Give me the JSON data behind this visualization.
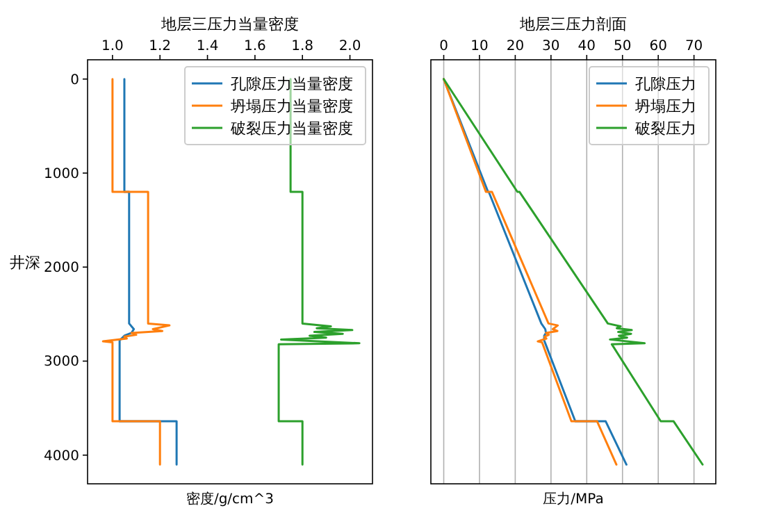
{
  "chart_data": [
    {
      "type": "line",
      "title": "地层三压力当量密度",
      "xlabel": "密度/g/cm^3",
      "ylabel": "井深",
      "xlim": [
        0.895,
        2.095
      ],
      "ylim": [
        4305,
        -205
      ],
      "xticks": [
        {
          "value": 1,
          "label": "1.0"
        },
        1.2,
        1.4,
        1.6,
        1.8,
        {
          "value": 2,
          "label": "2.0"
        }
      ],
      "yticks": [
        0,
        1000,
        2000,
        3000,
        4000
      ],
      "grid": false,
      "legend": "top right",
      "series": [
        {
          "name": "孔隙压力当量密度",
          "color": "#1f77b4",
          "x": [
            1.05,
            1.05,
            1.07,
            1.07,
            1.09,
            1.08,
            1.05,
            1.03,
            1.03,
            1.03,
            1.27,
            1.27
          ],
          "values": [
            0,
            1200,
            1200,
            2600,
            2660,
            2700,
            2730,
            2780,
            2820,
            3640,
            3640,
            4100
          ]
        },
        {
          "name": "坍塌压力当量密度",
          "color": "#ff7f0e",
          "x": [
            1.0,
            1.0,
            1.15,
            1.15,
            1.24,
            1.17,
            1.21,
            1.08,
            1.1,
            1.05,
            1.06,
            0.96,
            1.0,
            1.0,
            1.0,
            1.2,
            1.2
          ],
          "values": [
            0,
            1200,
            1200,
            2600,
            2620,
            2660,
            2680,
            2700,
            2720,
            2740,
            2760,
            2790,
            2800,
            2820,
            3640,
            3640,
            4100
          ]
        },
        {
          "name": "破裂压力当量密度",
          "color": "#2ca02c",
          "x": [
            1.75,
            1.75,
            1.8,
            1.8,
            1.92,
            1.86,
            2.01,
            1.85,
            1.97,
            1.83,
            1.9,
            1.71,
            2.04,
            1.7,
            1.7,
            1.8,
            1.8
          ],
          "values": [
            0,
            1200,
            1200,
            2600,
            2630,
            2650,
            2670,
            2690,
            2710,
            2730,
            2750,
            2770,
            2810,
            2820,
            3640,
            3640,
            4100
          ]
        }
      ]
    },
    {
      "type": "line",
      "title": "地层三压力剖面",
      "xlabel": "压力/MPa",
      "xlim": [
        -3.6,
        76.1
      ],
      "ylim": [
        4305,
        -205
      ],
      "xticks": [
        0,
        10,
        20,
        30,
        40,
        50,
        60,
        70
      ],
      "grid": "x",
      "legend": "top right",
      "tick_labels": "x",
      "series": [
        {
          "name": "孔隙压力",
          "color": "#1f77b4",
          "x": [
            0,
            12.4,
            12.6,
            27.3,
            28.4,
            28.6,
            28.1,
            28.1,
            28.5,
            36.8,
            45.3,
            51.1
          ],
          "values": [
            0,
            1200,
            1200,
            2600,
            2660,
            2700,
            2730,
            2780,
            2820,
            3640,
            3640,
            4100
          ]
        },
        {
          "name": "坍塌压力",
          "color": "#ff7f0e",
          "x": [
            0,
            11.8,
            13.5,
            29.3,
            31.9,
            30.5,
            31.8,
            28.6,
            29.4,
            28.2,
            28.7,
            26.3,
            27.5,
            27.7,
            35.7,
            42.9,
            48.3
          ],
          "values": [
            0,
            1200,
            1200,
            2600,
            2620,
            2660,
            2680,
            2700,
            2720,
            2740,
            2760,
            2790,
            2800,
            2820,
            3640,
            3640,
            4100
          ]
        },
        {
          "name": "破裂压力",
          "color": "#2ca02c",
          "x": [
            0,
            20.6,
            21.2,
            45.9,
            49.5,
            48.4,
            52.6,
            48.8,
            52.4,
            49.0,
            51.3,
            46.5,
            56.2,
            47.0,
            60.7,
            64.3,
            72.4
          ],
          "values": [
            0,
            1200,
            1200,
            2600,
            2630,
            2650,
            2670,
            2690,
            2710,
            2730,
            2750,
            2770,
            2810,
            2820,
            3640,
            3640,
            4100
          ]
        }
      ]
    }
  ]
}
